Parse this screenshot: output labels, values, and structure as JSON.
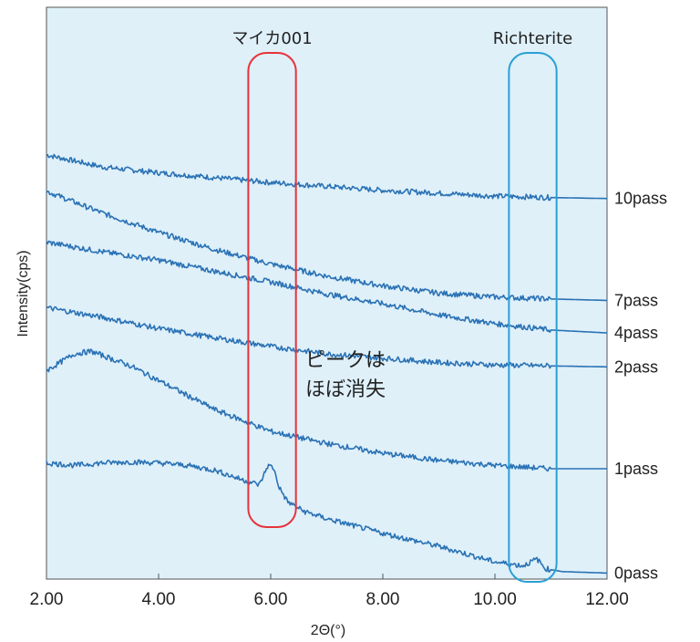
{
  "chart_data": {
    "type": "line",
    "xlabel": "2Θ(°)",
    "ylabel": "Intensity(cps)",
    "xlim": [
      2.0,
      12.0
    ],
    "ylim": [
      0,
      100
    ],
    "x_ticks": [
      "2.00",
      "4.00",
      "6.00",
      "8.00",
      "10.00",
      "12.00"
    ],
    "colors": {
      "line": "#2a72b5",
      "background": "#dff0f9",
      "mica_box": "#e8323a",
      "richterite_box": "#2a9fd6"
    },
    "series": [
      {
        "name": "10pass",
        "x": [
          2.0,
          3.0,
          4.0,
          5.0,
          6.0,
          7.0,
          8.0,
          9.0,
          10.0,
          11.0,
          12.0
        ],
        "values": [
          86.5,
          84.0,
          82.8,
          81.8,
          80.8,
          80.0,
          79.2,
          78.6,
          78.0,
          77.7,
          77.5
        ]
      },
      {
        "name": "7pass",
        "x": [
          2.0,
          3.0,
          4.0,
          5.0,
          6.0,
          7.0,
          8.0,
          9.0,
          10.0,
          11.0,
          12.0
        ],
        "values": [
          79.0,
          74.5,
          70.5,
          67.0,
          64.0,
          61.5,
          59.5,
          58.0,
          57.2,
          56.8,
          56.5
        ]
      },
      {
        "name": "4pass",
        "x": [
          2.0,
          3.0,
          4.0,
          5.0,
          6.0,
          7.0,
          8.0,
          9.0,
          10.0,
          11.0,
          12.0
        ],
        "values": [
          68.5,
          66.5,
          64.8,
          62.5,
          60.3,
          57.8,
          55.8,
          53.5,
          51.7,
          50.4,
          49.8
        ]
      },
      {
        "name": "2pass",
        "x": [
          2.0,
          3.0,
          4.0,
          5.0,
          6.0,
          7.0,
          8.0,
          9.0,
          10.0,
          11.0,
          12.0
        ],
        "values": [
          55.0,
          53.0,
          50.7,
          48.8,
          47.0,
          45.5,
          44.6,
          43.7,
          43.2,
          43.0,
          42.8
        ]
      },
      {
        "name": "1pass",
        "x": [
          2.0,
          2.5,
          2.8,
          3.5,
          4.0,
          5.0,
          6.0,
          7.0,
          8.0,
          9.0,
          10.0,
          11.0,
          12.0
        ],
        "values": [
          42.0,
          45.5,
          46.0,
          43.0,
          40.0,
          34.0,
          29.5,
          27.0,
          25.0,
          23.5,
          22.5,
          21.8,
          21.8
        ]
      },
      {
        "name": "0pass",
        "x": [
          2.0,
          2.5,
          3.0,
          3.5,
          4.0,
          4.5,
          5.0,
          5.5,
          5.8,
          5.95,
          6.05,
          6.15,
          6.3,
          6.6,
          7.0,
          8.0,
          9.0,
          10.0,
          10.5,
          10.75,
          10.9,
          11.2,
          12.0
        ],
        "values": [
          23.0,
          22.5,
          23.0,
          23.2,
          23.0,
          22.5,
          21.5,
          19.5,
          18.5,
          22.5,
          22.0,
          18.0,
          15.0,
          13.0,
          11.5,
          8.5,
          5.8,
          2.6,
          1.8,
          3.2,
          1.2,
          0.6,
          0.3
        ]
      }
    ],
    "annotations": [
      {
        "label": "マイカ001",
        "x_range": [
          5.6,
          6.45
        ]
      },
      {
        "label": "Richterite",
        "x_range": [
          10.25,
          11.1
        ]
      }
    ],
    "note": [
      "ピークは",
      "ほぼ消失"
    ]
  }
}
